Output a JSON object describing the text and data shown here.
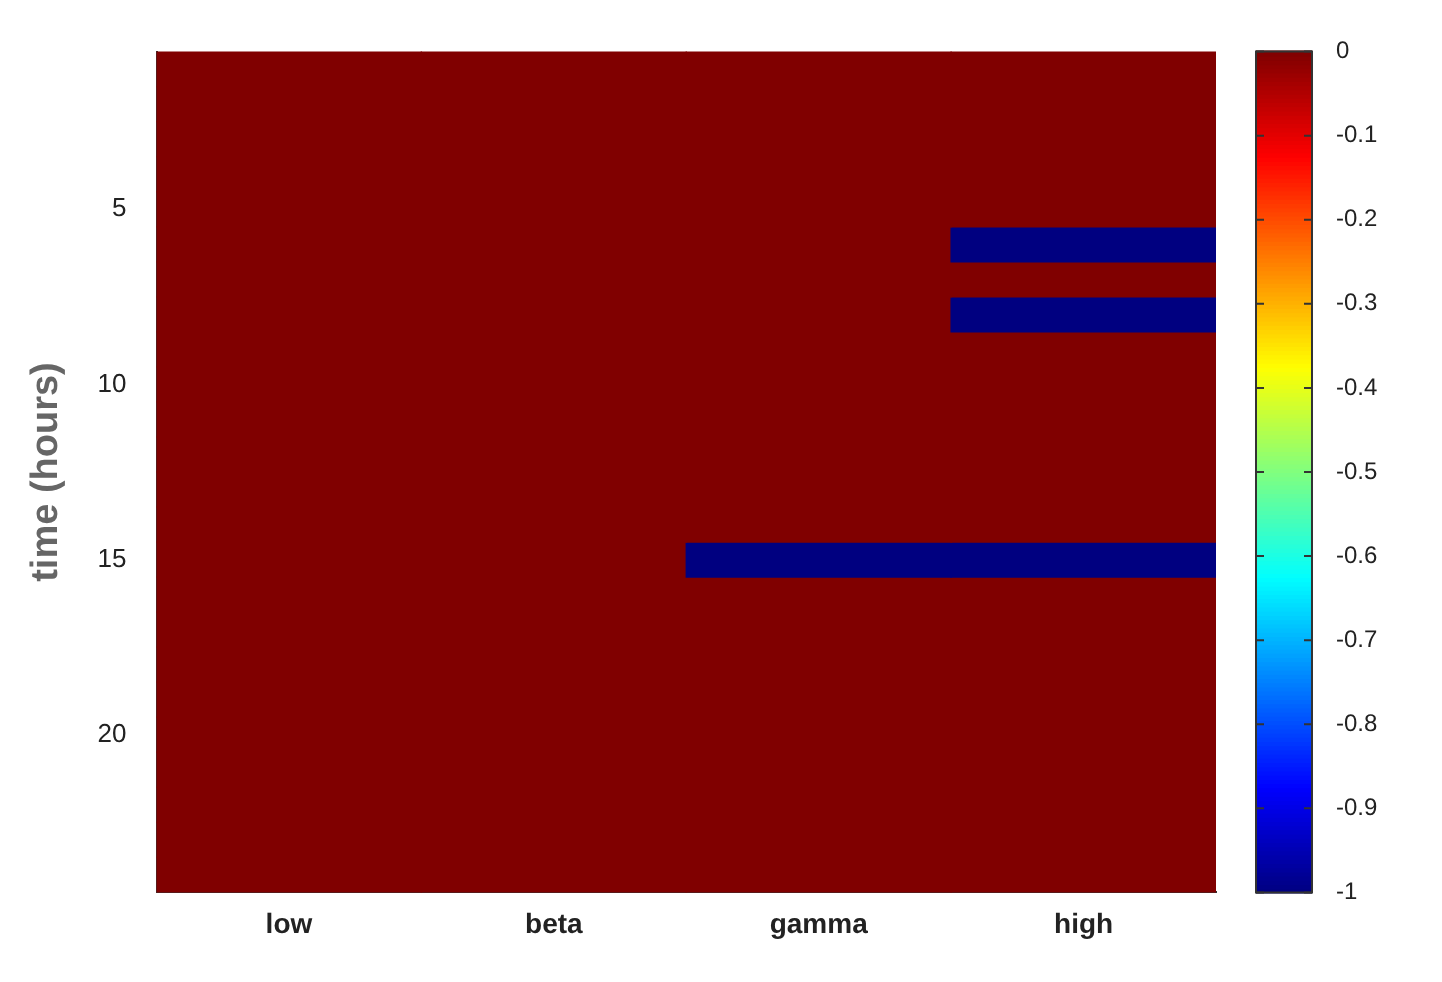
{
  "chart_data": {
    "type": "heatmap",
    "ylabel": "time (hours)",
    "categories": [
      "low",
      "beta",
      "gamma",
      "high"
    ],
    "ylim": [
      24.5,
      0.5
    ],
    "yticks": [
      5,
      10,
      15,
      20
    ],
    "cells": [
      [
        0,
        0,
        0,
        0
      ],
      [
        0,
        0,
        0,
        0
      ],
      [
        0,
        0,
        0,
        0
      ],
      [
        0,
        0,
        0,
        0
      ],
      [
        0,
        0,
        0,
        0
      ],
      [
        0,
        0,
        0,
        -1
      ],
      [
        0,
        0,
        0,
        0
      ],
      [
        0,
        0,
        0,
        -1
      ],
      [
        0,
        0,
        0,
        0
      ],
      [
        0,
        0,
        0,
        0
      ],
      [
        0,
        0,
        0,
        0
      ],
      [
        0,
        0,
        0,
        0
      ],
      [
        0,
        0,
        0,
        0
      ],
      [
        0,
        0,
        0,
        0
      ],
      [
        0,
        0,
        -1,
        -1
      ],
      [
        0,
        0,
        0,
        0
      ],
      [
        0,
        0,
        0,
        0
      ],
      [
        0,
        0,
        0,
        0
      ],
      [
        0,
        0,
        0,
        0
      ],
      [
        0,
        0,
        0,
        0
      ],
      [
        0,
        0,
        0,
        0
      ],
      [
        0,
        0,
        0,
        0
      ],
      [
        0,
        0,
        0,
        0
      ],
      [
        0,
        0,
        0,
        0
      ]
    ],
    "clim": [
      -1,
      0
    ],
    "cticks": [
      0,
      -0.1,
      -0.2,
      -0.3,
      -0.4,
      -0.5,
      -0.6,
      -0.7,
      -0.8,
      -0.9,
      -1
    ],
    "grid": false,
    "legend": false
  }
}
